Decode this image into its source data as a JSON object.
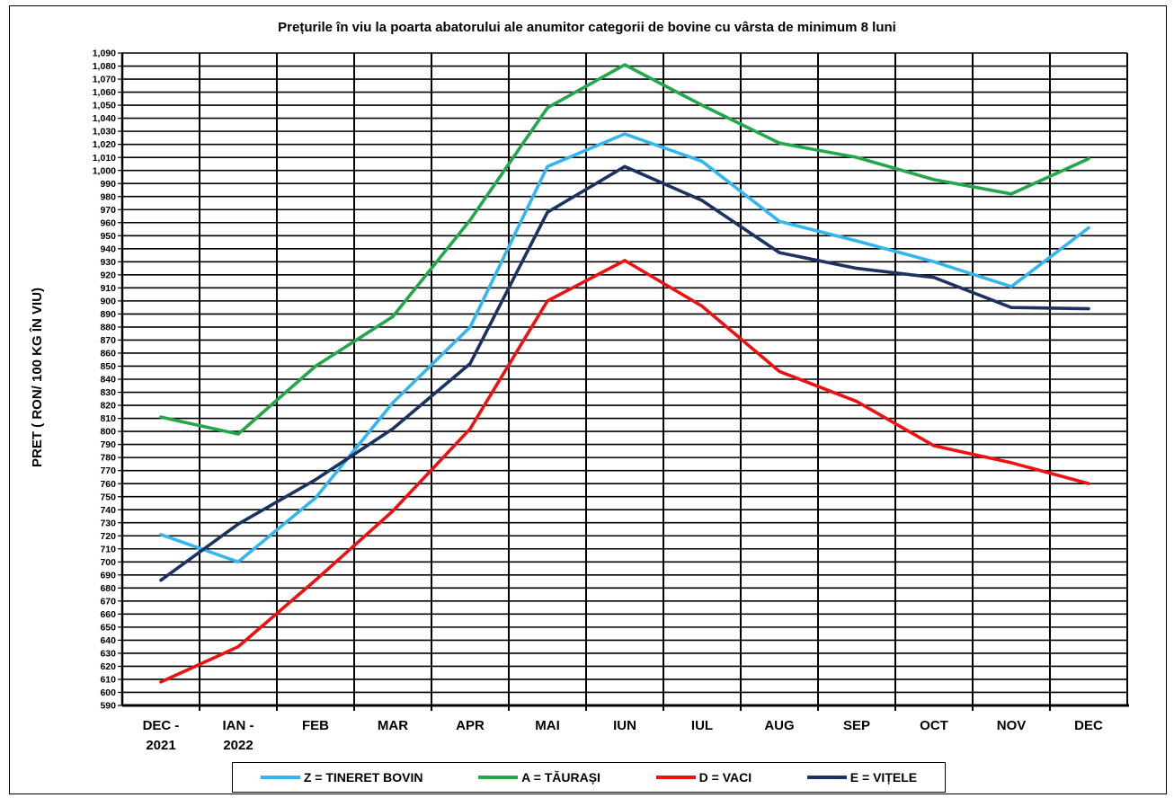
{
  "chart_data": {
    "type": "line",
    "title": "Prețurile în viu la poarta abatorului ale anumitor categorii de  bovine cu vârsta de minimum 8 luni",
    "ylabel": "PRET  ( RON/ 100 KG ÎN VIU)",
    "xlabel": "",
    "ylim": [
      590,
      1090
    ],
    "ytick_step": 10,
    "grid": true,
    "legend_position": "bottom",
    "categories": [
      [
        "DEC -",
        "2021"
      ],
      [
        "IAN -",
        "2022"
      ],
      [
        "FEB"
      ],
      [
        "MAR"
      ],
      [
        "APR"
      ],
      [
        "MAI"
      ],
      [
        "IUN"
      ],
      [
        "IUL"
      ],
      [
        "AUG"
      ],
      [
        "SEP"
      ],
      [
        "OCT"
      ],
      [
        "NOV"
      ],
      [
        "DEC"
      ]
    ],
    "series": [
      {
        "name": "Z  = TINERET BOVIN",
        "color": "#33b5ee",
        "values": [
          721,
          700,
          749,
          822,
          880,
          1003,
          1028,
          1007,
          961,
          946,
          930,
          911,
          956
        ]
      },
      {
        "name": "A = TĂURAȘI",
        "color": "#22a84b",
        "values": [
          811,
          798,
          850,
          888,
          962,
          1048,
          1081,
          1050,
          1021,
          1010,
          993,
          982,
          1009
        ]
      },
      {
        "name": "D = VACI",
        "color": "#ee1111",
        "values": [
          608,
          635,
          686,
          739,
          802,
          900,
          931,
          896,
          846,
          823,
          789,
          776,
          760
        ]
      },
      {
        "name": "E = VIȚELE",
        "color": "#1c3260",
        "values": [
          686,
          729,
          763,
          802,
          852,
          968,
          1003,
          977,
          937,
          925,
          918,
          895,
          894
        ]
      }
    ]
  }
}
